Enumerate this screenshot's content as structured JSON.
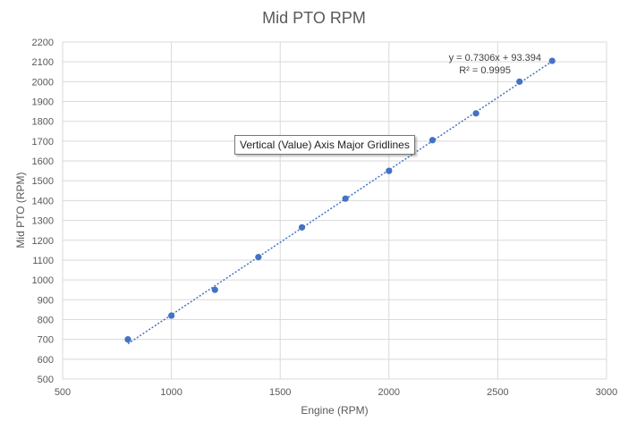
{
  "chart_data": {
    "type": "scatter",
    "title": "Mid PTO RPM",
    "xlabel": "Engine (RPM)",
    "ylabel": "Mid PTO (RPM)",
    "xlim": [
      500,
      3000
    ],
    "ylim": [
      500,
      2200
    ],
    "x_ticks": [
      500,
      1000,
      1500,
      2000,
      2500,
      3000
    ],
    "y_ticks": [
      500,
      600,
      700,
      800,
      900,
      1000,
      1100,
      1200,
      1300,
      1400,
      1500,
      1600,
      1700,
      1800,
      1900,
      2000,
      2100,
      2200
    ],
    "grid": true,
    "series": [
      {
        "points": [
          {
            "x": 800,
            "y": 700
          },
          {
            "x": 1000,
            "y": 820
          },
          {
            "x": 1200,
            "y": 950
          },
          {
            "x": 1400,
            "y": 1115
          },
          {
            "x": 1600,
            "y": 1265
          },
          {
            "x": 1800,
            "y": 1410
          },
          {
            "x": 2000,
            "y": 1550
          },
          {
            "x": 2200,
            "y": 1705
          },
          {
            "x": 2400,
            "y": 1840
          },
          {
            "x": 2600,
            "y": 2000
          },
          {
            "x": 2750,
            "y": 2105
          }
        ],
        "color": "#4472C4"
      }
    ],
    "trendline": {
      "type": "linear",
      "slope": 0.7306,
      "intercept": 93.394,
      "x_range": [
        800,
        2750
      ],
      "equation_label": "y = 0.7306x + 93.394",
      "r2_label": "R² = 0.9995",
      "style": "dotted",
      "color": "#4472C4"
    }
  },
  "tooltip": {
    "text": "Vertical (Value) Axis Major Gridlines"
  }
}
